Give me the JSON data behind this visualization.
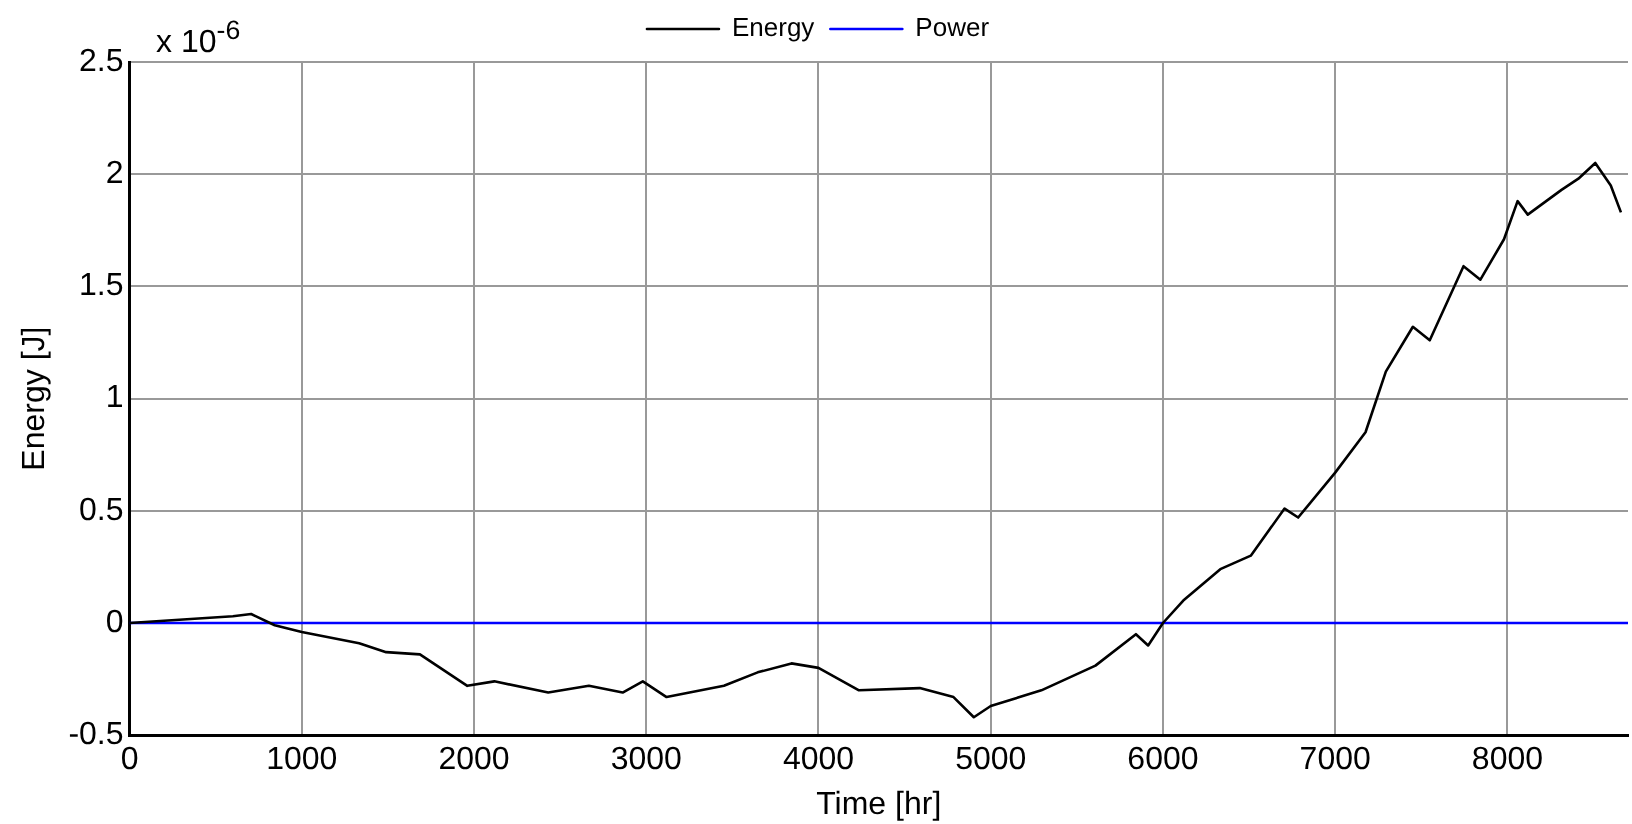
{
  "chart_data": {
    "type": "line",
    "xlabel": "Time [hr]",
    "ylabel": "Energy [J]",
    "annotations": [
      "x 10$^{-6}$"
    ],
    "xlim": [
      0,
      8700
    ],
    "xticks": [
      0,
      1000,
      2000,
      3000,
      4000,
      5000,
      6000,
      7000,
      8000
    ],
    "ylim": [
      -0.5,
      2.5
    ],
    "yticks": [
      -0.5,
      0,
      0.5,
      1,
      1.5,
      2,
      2.5
    ],
    "grid": true,
    "legend": "top",
    "marker": "none",
    "line_style": "solid",
    "series": [
      {
        "name": "Energy",
        "color": "#000000",
        "x": [
          0,
          200,
          400,
          600,
          706,
          843,
          1000,
          1333,
          1490,
          1686,
          1961,
          2118,
          2431,
          2667,
          2863,
          2980,
          3118,
          3451,
          3647,
          3843,
          4000,
          4235,
          4588,
          4784,
          4902,
          5000,
          5294,
          5608,
          5843,
          5914,
          6000,
          6118,
          6333,
          6510,
          6706,
          6785,
          7000,
          7176,
          7294,
          7451,
          7549,
          7745,
          7843,
          7980,
          8059,
          8118,
          8314,
          8412,
          8510,
          8600,
          8659
        ],
        "values": [
          0,
          0.01,
          0.02,
          0.03,
          0.04,
          -0.01,
          -0.04,
          -0.09,
          -0.13,
          -0.14,
          -0.28,
          -0.26,
          -0.31,
          -0.28,
          -0.31,
          -0.26,
          -0.33,
          -0.28,
          -0.22,
          -0.18,
          -0.2,
          -0.3,
          -0.29,
          -0.33,
          -0.42,
          -0.37,
          -0.3,
          -0.19,
          -0.05,
          -0.1,
          0,
          0.1,
          0.24,
          0.3,
          0.51,
          0.47,
          0.67,
          0.85,
          1.12,
          1.32,
          1.26,
          1.59,
          1.53,
          1.71,
          1.88,
          1.82,
          1.93,
          1.98,
          2.05,
          1.95,
          1.83
        ]
      },
      {
        "name": "Power",
        "color": "#0000ff",
        "x": [
          0,
          8700
        ],
        "values": [
          0,
          0
        ]
      }
    ]
  }
}
